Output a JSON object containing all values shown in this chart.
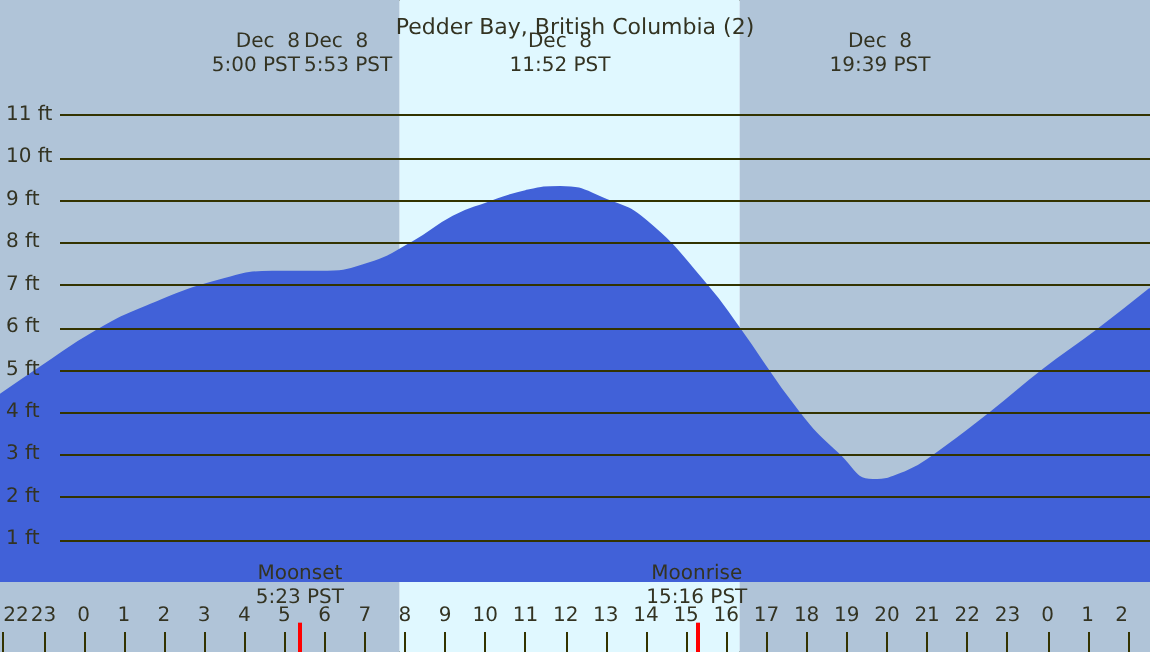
{
  "chart_data": {
    "type": "area",
    "title": "Pedder Bay, British Columbia (2)",
    "x": [
      "--12-07T21:55",
      "--12-07T23:00",
      "--12-08T00:18",
      "--12-08T01:36",
      "--12-08T03:24",
      "--12-08T04:42",
      "--12-08T05:00",
      "--12-08T05:53",
      "--12-08T07:06",
      "--12-08T08:12",
      "--12-08T09:12",
      "--12-08T10:00",
      "--12-08T11:00",
      "--12-08T11:52",
      "--12-08T13:00",
      "--12-08T14:00",
      "--12-08T15:30",
      "--12-08T16:18",
      "--12-08T17:48",
      "--12-08T18:48",
      "--12-08T19:39",
      "--12-08T20:30",
      "--12-08T21:12",
      "--12-08T22:36",
      "--12-08T23:54",
      "--12-09T01:12",
      "--12-09T02:33"
    ],
    "series": [
      {
        "color": "#4161d8",
        "values": [
          4.4,
          5.1,
          5.9,
          6.5,
          7.1,
          7.3,
          7.3,
          7.3,
          7.5,
          8.0,
          8.6,
          8.9,
          9.2,
          9.3,
          9.0,
          8.5,
          7.0,
          6.0,
          4.0,
          3.0,
          2.4,
          2.6,
          3.0,
          4.0,
          5.0,
          5.9,
          6.9
        ]
      }
    ],
    "xlim": [
      "--12-07T21:55",
      "--12-09T02:33"
    ],
    "ylim": [
      -1.65,
      13.7
    ],
    "xticks": [
      {
        "value": "--12-07T22:00",
        "label": "22"
      },
      {
        "value": "--12-07T23:00",
        "label": "23"
      },
      {
        "value": "--12-08T00:00",
        "label": "0"
      },
      {
        "value": "--12-08T01:00",
        "label": "1"
      },
      {
        "value": "--12-08T02:00",
        "label": "2"
      },
      {
        "value": "--12-08T03:00",
        "label": "3"
      },
      {
        "value": "--12-08T04:00",
        "label": "4"
      },
      {
        "value": "--12-08T05:00",
        "label": "5"
      },
      {
        "value": "--12-08T06:00",
        "label": "6"
      },
      {
        "value": "--12-08T07:00",
        "label": "7"
      },
      {
        "value": "--12-08T08:00",
        "label": "8"
      },
      {
        "value": "--12-08T09:00",
        "label": "9"
      },
      {
        "value": "--12-08T10:00",
        "label": "10"
      },
      {
        "value": "--12-08T11:00",
        "label": "11"
      },
      {
        "value": "--12-08T12:00",
        "label": "12"
      },
      {
        "value": "--12-08T13:00",
        "label": "13"
      },
      {
        "value": "--12-08T14:00",
        "label": "14"
      },
      {
        "value": "--12-08T15:00",
        "label": "15"
      },
      {
        "value": "--12-08T16:00",
        "label": "16"
      },
      {
        "value": "--12-08T17:00",
        "label": "17"
      },
      {
        "value": "--12-08T18:00",
        "label": "18"
      },
      {
        "value": "--12-08T19:00",
        "label": "19"
      },
      {
        "value": "--12-08T20:00",
        "label": "20"
      },
      {
        "value": "--12-08T21:00",
        "label": "21"
      },
      {
        "value": "--12-08T22:00",
        "label": "22"
      },
      {
        "value": "--12-08T23:00",
        "label": "23"
      },
      {
        "value": "--12-09T00:00",
        "label": "0"
      },
      {
        "value": "--12-09T01:00",
        "label": "1"
      },
      {
        "value": "--12-09T02:00",
        "label": "2"
      }
    ],
    "yticks": [
      {
        "value": 1,
        "label": "1 ft"
      },
      {
        "value": 2,
        "label": "2 ft"
      },
      {
        "value": 3,
        "label": "3 ft"
      },
      {
        "value": 4,
        "label": "4 ft"
      },
      {
        "value": 5,
        "label": "5 ft"
      },
      {
        "value": 6,
        "label": "6 ft"
      },
      {
        "value": 7,
        "label": "7 ft"
      },
      {
        "value": 8,
        "label": "8 ft"
      },
      {
        "value": 9,
        "label": "9 ft"
      },
      {
        "value": 10,
        "label": "10 ft"
      },
      {
        "value": 11,
        "label": "11 ft"
      }
    ],
    "grid": "y",
    "bands": [
      {
        "axis": "x",
        "from": "--12-07T21:55",
        "to": "--12-08T07:52",
        "color": "#b0c4d8"
      },
      {
        "axis": "x",
        "from": "--12-08T07:52",
        "to": "--12-08T16:20",
        "color": "#e0f8ff"
      },
      {
        "axis": "x",
        "from": "--12-08T16:20",
        "to": "--12-09T02:33",
        "color": "#b0c4d8"
      }
    ],
    "ref_lines": [
      {
        "axis": "x",
        "value": "--12-08T05:23",
        "label": "Moonset\n5:23 PST",
        "color": "#ff0000"
      },
      {
        "axis": "x",
        "value": "--12-08T15:16",
        "label": "Moonrise\n15:16 PST",
        "color": "#ff0000"
      }
    ],
    "annotations": [
      "Dec  8\n5:00 PST",
      "Dec  8\n5:53 PST",
      "Dec  8\n11:52 PST",
      "Dec  8\n19:39 PST"
    ]
  }
}
